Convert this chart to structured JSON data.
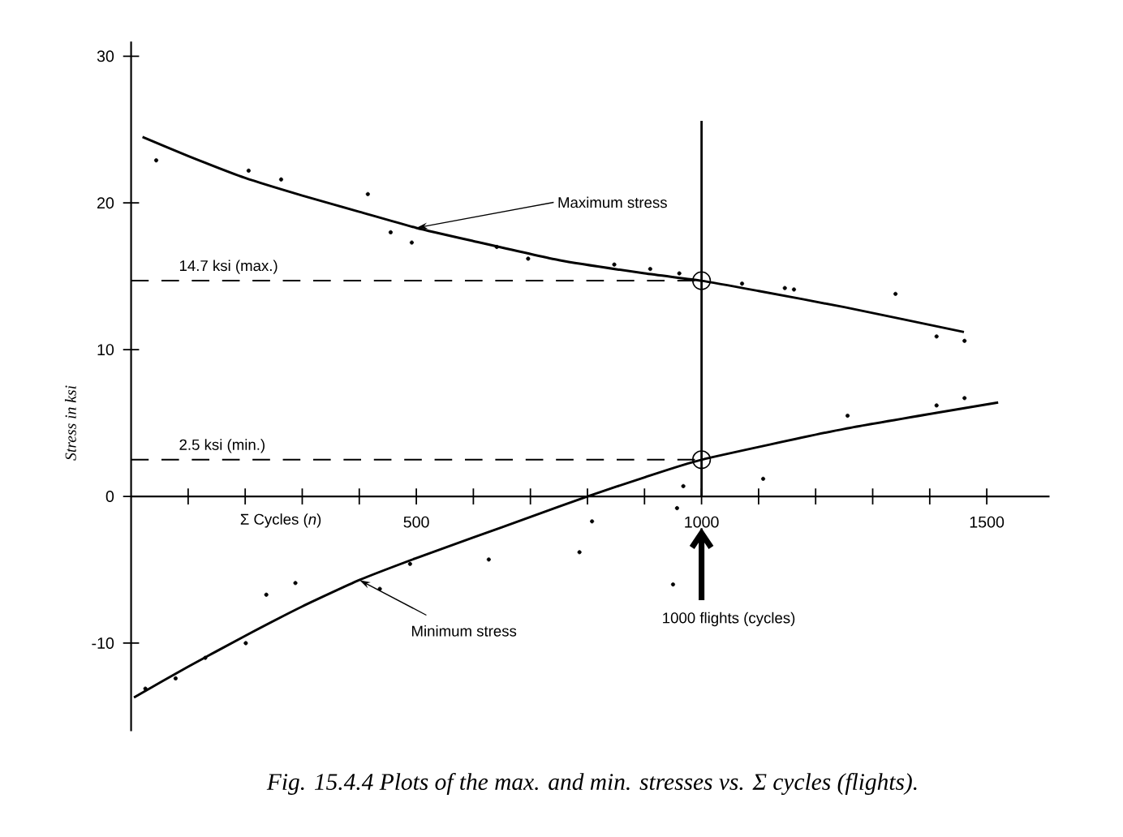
{
  "chart_data": {
    "type": "scatter",
    "xlabel": "Σ Cycles (*n*)",
    "ylabel": "Stress in ksi",
    "annotations": [
      "Fig. 15.4.4 Plots of the max. and min. stresses vs. Σ cycles (flights).",
      {
        "text": "Maximum stress",
        "x": 500,
        "y": 18.3
      },
      {
        "text": "Minimum stress",
        "x": 400,
        "y": -5.7
      }
    ],
    "xlim": [
      0,
      1610
    ],
    "ylim": [
      -16,
      31
    ],
    "xticks": [
      {
        "value": 100,
        "label": null
      },
      {
        "value": 200,
        "label": null
      },
      {
        "value": 300,
        "label": null
      },
      {
        "value": 400,
        "label": null
      },
      500,
      {
        "value": 600,
        "label": null
      },
      {
        "value": 700,
        "label": null
      },
      {
        "value": 800,
        "label": null
      },
      {
        "value": 900,
        "label": null
      },
      1000,
      {
        "value": 1100,
        "label": null
      },
      {
        "value": 1200,
        "label": null
      },
      {
        "value": 1300,
        "label": null
      },
      {
        "value": 1400,
        "label": null
      },
      1500
    ],
    "yticks": [
      -10,
      0,
      10,
      20,
      30
    ],
    "series": [
      {
        "type": "line",
        "color": "#000000",
        "marker": "none",
        "x": [
          20,
          100,
          200,
          300,
          400,
          500,
          600,
          750,
          900,
          1000,
          1100,
          1250,
          1460
        ],
        "values": [
          24.5,
          23.2,
          21.7,
          20.5,
          19.4,
          18.3,
          17.4,
          16.1,
          15.2,
          14.7,
          14.0,
          12.9,
          11.2
        ]
      },
      {
        "color": "#000000",
        "marker": "circle",
        "x": [
          44,
          206,
          263,
          415,
          455,
          492,
          641,
          696,
          847,
          910,
          961,
          1071,
          1146,
          1162,
          1340,
          1412,
          1461
        ],
        "values": [
          22.9,
          22.2,
          21.6,
          20.6,
          18.0,
          17.3,
          17.0,
          16.2,
          15.8,
          15.5,
          15.2,
          14.5,
          14.2,
          14.1,
          13.8,
          10.9,
          10.6
        ]
      },
      {
        "type": "line",
        "color": "#000000",
        "marker": "none",
        "x": [
          5,
          100,
          200,
          300,
          400,
          500,
          600,
          700,
          800,
          900,
          1000,
          1250,
          1520
        ],
        "values": [
          -13.7,
          -11.6,
          -9.5,
          -7.5,
          -5.7,
          -4.2,
          -2.8,
          -1.4,
          0,
          1.3,
          2.5,
          4.6,
          6.4
        ]
      },
      {
        "color": "#000000",
        "marker": "circle",
        "x": [
          25,
          78,
          130,
          201,
          237,
          288,
          436,
          489,
          627,
          786,
          808,
          950,
          957,
          968,
          1108,
          1256,
          1412,
          1461
        ],
        "values": [
          -13.1,
          -12.4,
          -11.0,
          -10.0,
          -6.7,
          -5.9,
          -6.3,
          -4.6,
          -4.3,
          -3.8,
          -1.7,
          -6.0,
          -0.8,
          0.7,
          1.2,
          5.5,
          6.2,
          6.7
        ]
      }
    ],
    "ref_lines": [
      {
        "axis": "x",
        "value": 1000,
        "label": "1000 flights (cycles)"
      },
      {
        "axis": "y",
        "value": 14.7,
        "label": "14.7 ksi (max.)",
        "line_style": "dashed"
      },
      {
        "axis": "y",
        "value": 2.5,
        "label": "2.5 ksi (min.)",
        "line_style": "dashed"
      }
    ]
  }
}
